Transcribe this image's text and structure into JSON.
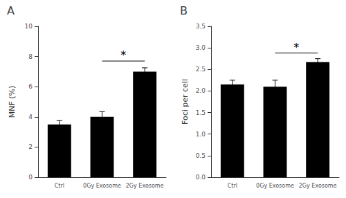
{
  "chart_data": [
    {
      "type": "bar",
      "title": "A",
      "categories": [
        "Ctrl",
        "0Gy Exosome",
        "2Gy Exosome"
      ],
      "values": [
        3.5,
        4.0,
        7.0
      ],
      "errors": [
        0.25,
        0.35,
        0.25
      ],
      "ylabel": "MNF (%)",
      "ylim": [
        0,
        10
      ],
      "yticks": [
        0,
        2,
        4,
        6,
        8,
        10
      ],
      "color": "#000000",
      "grid": false,
      "annotations": [
        {
          "text": "*",
          "from": "0Gy Exosome",
          "to": "2Gy Exosome",
          "y": 7.7,
          "text_y": 8.0
        }
      ]
    },
    {
      "type": "bar",
      "title": "B",
      "categories": [
        "Ctrl",
        "0Gy Exosome",
        "2Gy Exosome"
      ],
      "values": [
        2.15,
        2.1,
        2.67
      ],
      "errors": [
        0.1,
        0.15,
        0.08
      ],
      "ylabel": "Foci per cell",
      "ylim": [
        0,
        3.5
      ],
      "yticks": [
        {
          "value": 0,
          "label": "0.0"
        },
        0.5,
        {
          "value": 1.0,
          "label": "1.0"
        },
        1.5,
        {
          "value": 2.0,
          "label": "2.0"
        },
        2.5,
        {
          "value": 3.0,
          "label": "3.0"
        },
        3.5
      ],
      "color": "#000000",
      "grid": false,
      "annotations": [
        {
          "text": "*",
          "from": "0Gy Exosome",
          "to": "2Gy Exosome",
          "y": 2.88,
          "text_y": 2.98
        }
      ]
    }
  ]
}
